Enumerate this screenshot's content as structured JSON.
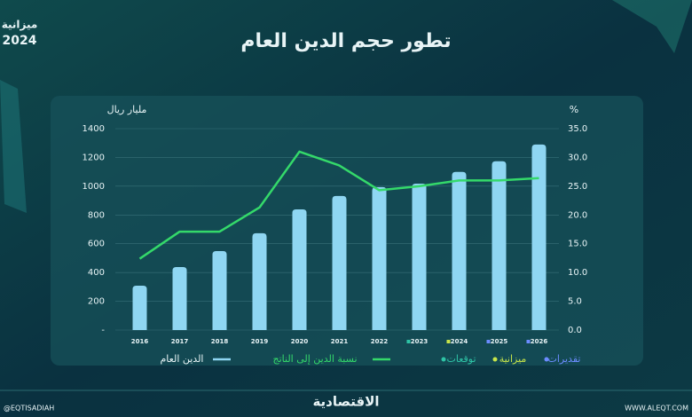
{
  "chart_data": {
    "type": "bar",
    "title": "تطور حجم الدين العام",
    "ylabel": "مليار ريال",
    "y2label": "%",
    "categories": [
      "2016",
      "2017",
      "2018",
      "2019",
      "2020",
      "2021",
      "2022",
      "2023",
      "2024",
      "2025",
      "2026"
    ],
    "series": [
      {
        "name": "الدين العام",
        "type": "bar",
        "color": "#8fd6f2",
        "values": [
          308,
          438,
          549,
          673,
          839,
          932,
          994,
          1018,
          1099,
          1173,
          1290
        ]
      },
      {
        "name": "نسبة الدين إلى الناتج",
        "type": "line",
        "axis": "y2",
        "color": "#34d96a",
        "values": [
          12.4,
          17.1,
          17.1,
          21.3,
          31.0,
          28.6,
          24.3,
          25.0,
          26.0,
          26.0,
          26.4
        ]
      }
    ],
    "ylim": [
      0,
      1400
    ],
    "yticks": [
      {
        "value": 0,
        "label": "-"
      },
      200,
      400,
      600,
      800,
      1000,
      1200,
      1400
    ],
    "y2lim": [
      0,
      35
    ],
    "y2ticks": [
      {
        "value": 0,
        "label": "0.0"
      },
      {
        "value": 5,
        "label": "5.0"
      },
      {
        "value": 10,
        "label": "10.0"
      },
      {
        "value": 15,
        "label": "15.0"
      },
      {
        "value": 20,
        "label": "20.0"
      },
      {
        "value": 25,
        "label": "25.0"
      },
      {
        "value": 30,
        "label": "30.0"
      },
      {
        "value": 35,
        "label": "35.0"
      }
    ],
    "grid": true,
    "marker_legend": [
      {
        "name": "توقعات",
        "color": "#2ec4a6"
      },
      {
        "name": "ميزانية",
        "color": "#c8e64a"
      },
      {
        "name": "تقديرات",
        "color": "#6c8cff"
      }
    ],
    "category_marker_colors": [
      null,
      null,
      null,
      null,
      null,
      null,
      null,
      "#2ec4a6",
      "#c8e64a",
      "#6c8cff",
      "#6c8cff"
    ]
  },
  "branding": {
    "logo": "ميزانية",
    "logo_year": "2024",
    "publisher": "الاقتصادية",
    "handle": "@EQTISADIAH",
    "website": "WWW.ALEQT.COM"
  }
}
